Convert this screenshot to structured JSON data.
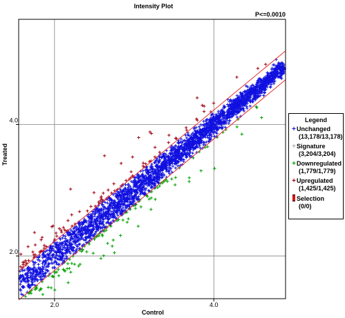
{
  "chart_data": {
    "type": "scatter",
    "title": "Intensity Plot",
    "xlabel": "Control",
    "ylabel": "Treated",
    "xlim": [
      1.55,
      4.9
    ],
    "ylim": [
      1.35,
      5.6
    ],
    "x_ticks": [
      2.0,
      4.0
    ],
    "x_tick_labels": [
      "2.0",
      "4.0"
    ],
    "y_ticks": [
      2.0,
      4.0
    ],
    "y_tick_labels": [
      "2.0",
      "4.0"
    ],
    "grid": true,
    "annotation": "P<=0.0010",
    "threshold_offset": 0.22,
    "legend_position": "right",
    "legend_title": "Legend",
    "series": [
      {
        "name": "Unchanged",
        "count_label": "(13,178/13,178)",
        "color": "#1010e0",
        "marker": "+"
      },
      {
        "name": "Signature",
        "count_label": "(3,204/3,204)",
        "color": "#b0b0b0",
        "marker": "+"
      },
      {
        "name": "Downregulated",
        "count_label": "(1,779/1,779)",
        "color": "#00a000",
        "marker": "+"
      },
      {
        "name": "Upregulated",
        "count_label": "(1,425/1,425)",
        "color": "#a00010",
        "marker": "+"
      },
      {
        "name": "Selection",
        "count_label": "(0/0)",
        "color": "#d01010",
        "marker": "selection"
      }
    ]
  }
}
